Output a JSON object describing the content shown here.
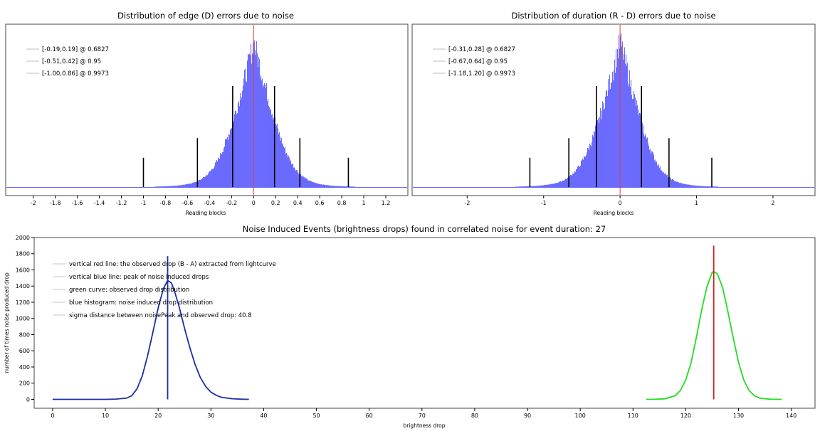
{
  "chart_data": [
    {
      "type": "bar",
      "title": "Distribution of edge (D) errors due to noise",
      "xlabel": "Reading blocks",
      "ylabel": "",
      "xlim": [
        -2.25,
        1.4
      ],
      "x_ticks": [
        "-2",
        "-1.8",
        "-1.6",
        "-1.4",
        "-1.2",
        "-1",
        "-0.8",
        "-0.6",
        "-0.4",
        "-0.2",
        "0",
        "0.2",
        "0.4",
        "0.6",
        "0.8",
        "1",
        "1.2"
      ],
      "histogram": {
        "color": "#6b6bff",
        "center": 0.0,
        "spread_left": 0.2,
        "spread_right": 0.2
      },
      "center_line": {
        "x": 0,
        "color": "#e04040"
      },
      "intervals": [
        {
          "label": "[-0.19,0.19] @ 0.6827",
          "low": -0.19,
          "high": 0.19,
          "height": 0.62
        },
        {
          "label": "[-0.51,0.42] @ 0.95",
          "low": -0.51,
          "high": 0.42,
          "height": 0.3
        },
        {
          "label": "[-1.00,0.86] @ 0.9973",
          "low": -1.0,
          "high": 0.86,
          "height": 0.18
        }
      ],
      "grid": false,
      "legend_position": "top-left"
    },
    {
      "type": "bar",
      "title": "Distribution of duration (R - D) errors due to noise",
      "xlabel": "Reading blocks",
      "ylabel": "",
      "xlim": [
        -2.72,
        2.55
      ],
      "x_ticks": [
        "-2",
        "-1",
        "0",
        "1",
        "2"
      ],
      "histogram": {
        "color": "#6b6bff",
        "center": 0.0,
        "spread_left": 0.3,
        "spread_right": 0.28
      },
      "center_line": {
        "x": 0,
        "color": "#e04040"
      },
      "intervals": [
        {
          "label": "[-0.31,0.28] @ 0.6827",
          "low": -0.31,
          "high": 0.28,
          "height": 0.62
        },
        {
          "label": "[-0.67,0.64] @ 0.95",
          "low": -0.67,
          "high": 0.64,
          "height": 0.3
        },
        {
          "label": "[-1.18,1.20] @ 0.9973",
          "low": -1.18,
          "high": 1.2,
          "height": 0.18
        }
      ],
      "grid": false,
      "legend_position": "top-left"
    },
    {
      "type": "line",
      "title": "Noise Induced Events (brightness drops) found in correlated noise for event duration: 27",
      "xlabel": "brightness drop",
      "ylabel": "number of times noise produced drop",
      "xlim": [
        -3.5,
        144.5
      ],
      "ylim": [
        -110,
        2000
      ],
      "x_ticks": [
        "0",
        "10",
        "20",
        "30",
        "40",
        "50",
        "60",
        "70",
        "80",
        "90",
        "100",
        "110",
        "120",
        "130",
        "140"
      ],
      "y_ticks": [
        "0",
        "200",
        "400",
        "600",
        "800",
        "1000",
        "1200",
        "1400",
        "1600",
        "1800",
        "2000"
      ],
      "legend": [
        "vertical red line: the observed drop (B - A) extracted from lightcurve",
        "vertical blue line: peak of noise induced drops",
        "green curve: observed drop distribution",
        "blue histogram: noise induced drop distribution",
        "sigma distance between noisePeak and observed drop: 40.8"
      ],
      "series": [
        {
          "color": "#1c2ea8",
          "x": [
            0,
            10,
            12,
            14,
            15,
            16,
            17,
            18,
            19,
            20,
            21,
            21.8,
            22.5,
            23,
            24,
            25,
            26,
            27,
            28,
            29,
            30,
            31,
            32,
            34,
            36,
            37.2
          ],
          "y": [
            0,
            0,
            3,
            15,
            45,
            130,
            290,
            540,
            830,
            1130,
            1370,
            1470,
            1440,
            1360,
            1140,
            880,
            640,
            430,
            270,
            160,
            90,
            50,
            25,
            8,
            2,
            0
          ]
        },
        {
          "color": "#22dd22",
          "x": [
            112.5,
            114,
            116,
            118,
            119,
            120,
            121,
            122,
            123,
            124,
            125,
            125.3,
            126,
            127,
            128,
            129,
            130,
            131,
            132,
            133,
            134,
            136,
            138.2
          ],
          "y": [
            0,
            1,
            6,
            45,
            110,
            240,
            450,
            760,
            1100,
            1390,
            1570,
            1580,
            1550,
            1380,
            1080,
            760,
            460,
            240,
            110,
            45,
            15,
            2,
            0
          ]
        }
      ],
      "vertical_lines": [
        {
          "x": 21.8,
          "top": 1770,
          "color": "#1c2ea8"
        },
        {
          "x": 125.3,
          "top": 1900,
          "color": "#cc2222"
        }
      ],
      "grid": false,
      "legend_position": "top-left"
    }
  ]
}
